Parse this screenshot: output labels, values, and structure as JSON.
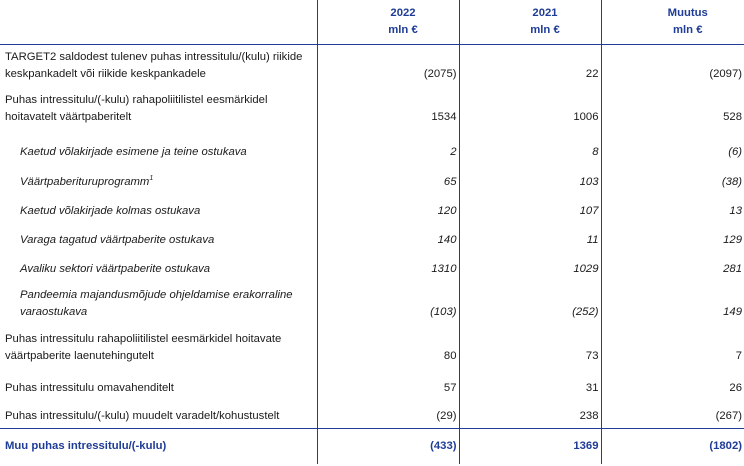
{
  "header": {
    "col1": {
      "year": "2022",
      "unit": "mln €"
    },
    "col2": {
      "year": "2021",
      "unit": "mln €"
    },
    "col3": {
      "year": "Muutus",
      "unit": "mln €"
    }
  },
  "rows": [
    {
      "label": "TARGET2 saldodest tulenev puhas intressitulu/(kulu) riikide keskpankadelt või riikide keskpankadele",
      "v2022": "(2075)",
      "v2021": "22",
      "change": "(2097)",
      "italic": false
    },
    {
      "label": "Puhas intressitulu/(-kulu) rahapoliitilistel eesmärkidel hoitavatelt väärtpaberitelt",
      "v2022": "1534",
      "v2021": "1006",
      "change": "528",
      "italic": false
    },
    {
      "label": "Kaetud võlakirjade esimene ja teine ostukava",
      "v2022": "2",
      "v2021": "8",
      "change": "(6)",
      "italic": true
    },
    {
      "label": "Väärtpaberituruprogramm",
      "footnote": "1",
      "v2022": "65",
      "v2021": "103",
      "change": "(38)",
      "italic": true
    },
    {
      "label": "Kaetud võlakirjade kolmas ostukava",
      "v2022": "120",
      "v2021": "107",
      "change": "13",
      "italic": true
    },
    {
      "label": "Varaga tagatud väärtpaberite ostukava",
      "v2022": "140",
      "v2021": "11",
      "change": "129",
      "italic": true
    },
    {
      "label": "Avaliku sektori väärtpaberite ostukava",
      "v2022": "1310",
      "v2021": "1029",
      "change": "281",
      "italic": true
    },
    {
      "label": "Pandeemia majandusmõjude ohjeldamise erakorraline varaostukava",
      "v2022": "(103)",
      "v2021": "(252)",
      "change": "149",
      "italic": true
    },
    {
      "label": "Puhas intressitulu rahapoliitilistel eesmärkidel hoitavate väärtpaberite laenutehingutelt",
      "v2022": "80",
      "v2021": "73",
      "change": "7",
      "italic": false
    },
    {
      "label": "Puhas intressitulu omavahenditelt",
      "v2022": "57",
      "v2021": "31",
      "change": "26",
      "italic": false
    },
    {
      "label": "Puhas intressitulu/(-kulu) muudelt varadelt/kohustustelt",
      "v2022": "(29)",
      "v2021": "238",
      "change": "(267)",
      "italic": false
    }
  ],
  "total": {
    "label": "Muu puhas intressitulu/(-kulu)",
    "v2022": "(433)",
    "v2021": "1369",
    "change": "(1802)"
  },
  "colors": {
    "accent": "#1f3c96"
  }
}
